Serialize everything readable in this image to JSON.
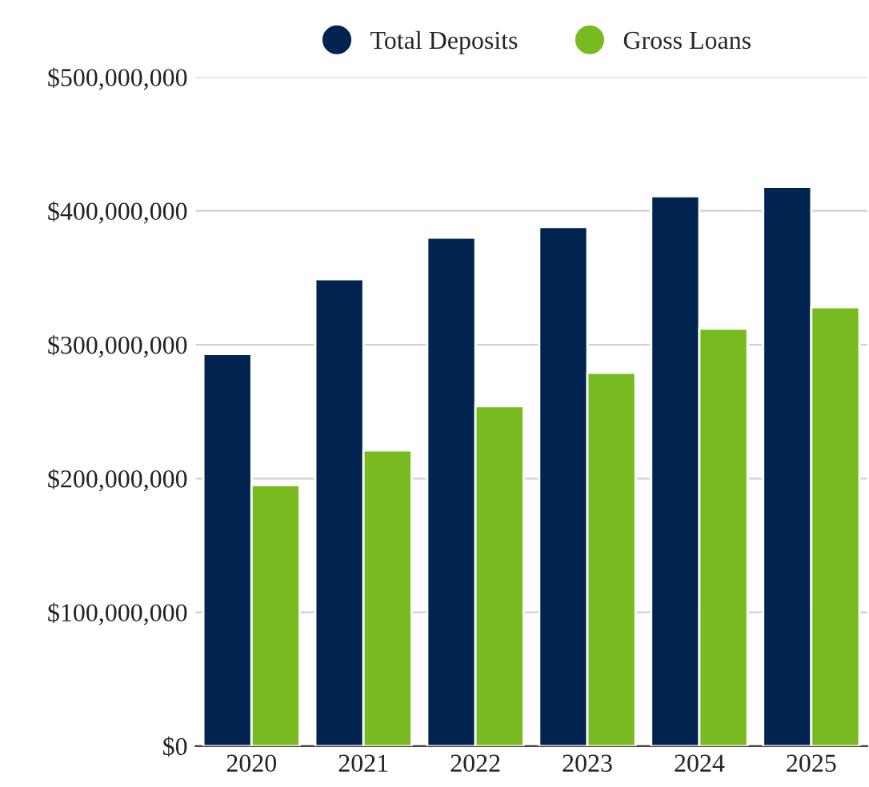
{
  "chart_data": {
    "type": "bar",
    "categories": [
      "2020",
      "2021",
      "2022",
      "2023",
      "2024",
      "2025"
    ],
    "series": [
      {
        "name": "Total Deposits",
        "color": "#00244f",
        "values": [
          293000000,
          349000000,
          380000000,
          388000000,
          411000000,
          418000000
        ]
      },
      {
        "name": "Gross Loans",
        "color": "#78bb20",
        "values": [
          195000000,
          221000000,
          254000000,
          279000000,
          312000000,
          328000000
        ]
      }
    ],
    "ylim": [
      0,
      500000000
    ],
    "yticks": [
      {
        "value": 0,
        "label": "$0"
      },
      {
        "value": 100000000,
        "label": "$100,000,000"
      },
      {
        "value": 200000000,
        "label": "$200,000,000"
      },
      {
        "value": 300000000,
        "label": "$300,000,000"
      },
      {
        "value": 400000000,
        "label": "$400,000,000"
      },
      {
        "value": 500000000,
        "label": "$500,000,000"
      }
    ],
    "grid": "y",
    "legend": "top"
  }
}
